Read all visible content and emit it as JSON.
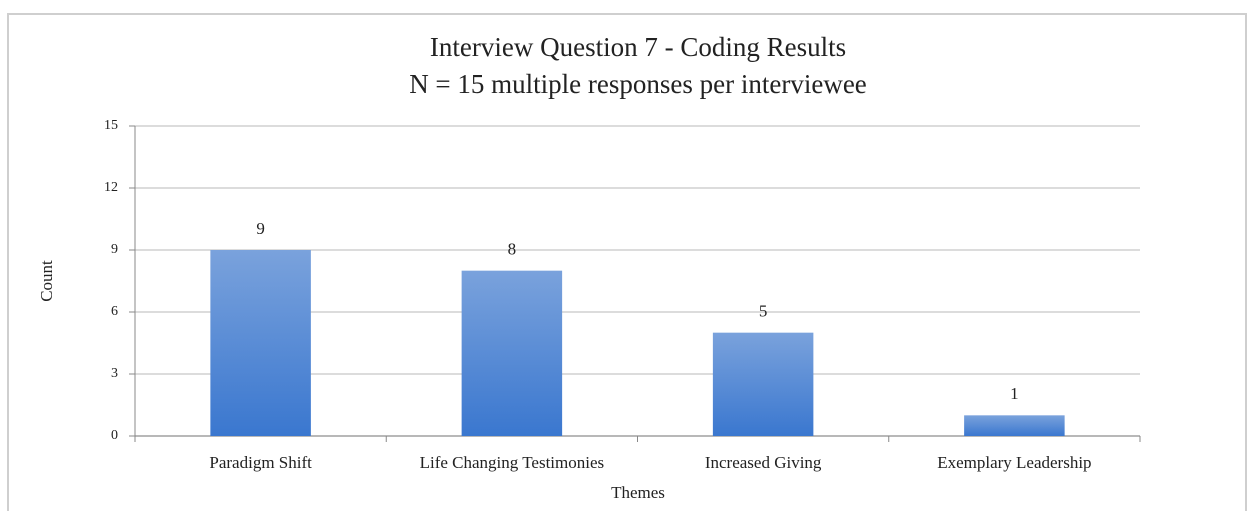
{
  "chart_data": {
    "type": "bar",
    "title": "Interview Question 7 - Coding Results",
    "subtitle": "N = 15 multiple responses per interviewee",
    "x_label": "Themes",
    "y_label": "Count",
    "categories": [
      "Paradigm Shift",
      "Life Changing Testimonies",
      "Increased Giving",
      "Exemplary Leadership"
    ],
    "values": [
      9,
      8,
      5,
      1
    ],
    "color": "#4a82d4",
    "ylim": [
      0,
      15
    ],
    "yticks": [
      0,
      3,
      6,
      9,
      12,
      15
    ],
    "grid": true
  }
}
